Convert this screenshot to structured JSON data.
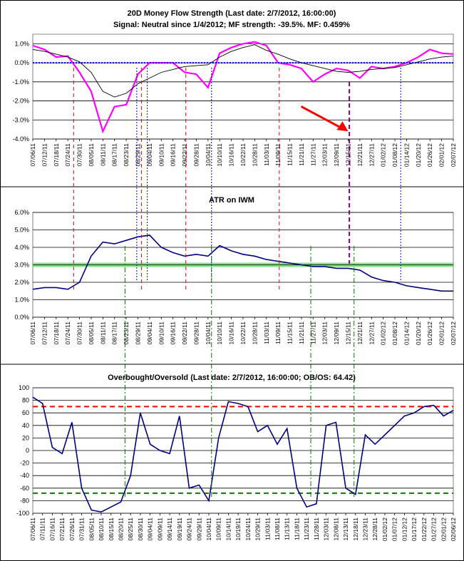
{
  "chart_data": [
    {
      "type": "line",
      "title": "20D Money Flow Strength (Last date: 2/7/2012, 16:00:00)",
      "subtitle": "Signal: Neutral since  1/4/2012; MF strength: -39.5%. MF: 0.459%",
      "ylim": [
        -4.0,
        1.5
      ],
      "yticks": [
        "1.0%",
        "0.0%",
        "-1.0%",
        "-2.0%",
        "-3.0%",
        "-4.0%"
      ],
      "ytick_values": [
        1.0,
        0.0,
        -1.0,
        -2.0,
        -3.0,
        -4.0
      ],
      "x_labels": [
        "07/06/11",
        "07/12/11",
        "07/18/11",
        "07/24/11",
        "07/30/11",
        "08/05/11",
        "08/11/11",
        "08/17/11",
        "08/23/11",
        "08/29/11",
        "09/04/11",
        "09/10/11",
        "09/16/11",
        "09/22/11",
        "09/28/11",
        "10/04/11",
        "10/10/11",
        "10/16/11",
        "10/22/11",
        "10/28/11",
        "11/03/11",
        "11/09/11",
        "11/15/11",
        "11/21/11",
        "11/27/11",
        "12/03/11",
        "12/09/11",
        "12/15/11",
        "12/21/11",
        "12/27/11",
        "01/02/12",
        "01/08/12",
        "01/14/12",
        "01/20/12",
        "01/26/12",
        "02/01/12",
        "02/07/12"
      ],
      "grid": true,
      "series": [
        {
          "color": "#ff00ff",
          "x": [
            0,
            1,
            2,
            3,
            4,
            5,
            6,
            7,
            8,
            9,
            10,
            11,
            12,
            13,
            14,
            15,
            16,
            17,
            18,
            19,
            20,
            21,
            22,
            23,
            24,
            25,
            26,
            27,
            28,
            29,
            30,
            31,
            32,
            33,
            34,
            35,
            36
          ],
          "values": [
            0.9,
            0.7,
            0.3,
            0.35,
            -0.5,
            -1.5,
            -3.6,
            -2.3,
            -2.2,
            -0.6,
            0.0,
            0.0,
            0.0,
            -0.5,
            -0.6,
            -1.3,
            0.5,
            0.8,
            1.0,
            1.1,
            0.9,
            0.0,
            -0.1,
            -0.3,
            -1.0,
            -0.6,
            -0.3,
            -0.4,
            -0.8,
            -0.2,
            -0.3,
            -0.2,
            0.0,
            0.3,
            0.7,
            0.5,
            0.46
          ]
        },
        {
          "color": "#000000",
          "x": [
            0,
            1,
            2,
            3,
            4,
            5,
            6,
            7,
            8,
            9,
            10,
            11,
            12,
            13,
            14,
            15,
            16,
            17,
            18,
            19,
            20,
            21,
            22,
            23,
            24,
            25,
            26,
            27,
            28,
            29,
            30,
            31,
            32,
            33,
            34,
            35,
            36
          ],
          "values": [
            0.7,
            0.6,
            0.45,
            0.3,
            0.05,
            -0.5,
            -1.5,
            -1.8,
            -1.6,
            -1.1,
            -0.8,
            -0.5,
            -0.35,
            -0.2,
            -0.15,
            -0.1,
            0.3,
            0.6,
            0.8,
            0.95,
            0.65,
            0.45,
            0.2,
            0.0,
            -0.15,
            -0.3,
            -0.45,
            -0.5,
            -0.45,
            -0.35,
            -0.3,
            -0.25,
            -0.1,
            0.05,
            0.2,
            0.3,
            0.35
          ]
        },
        {
          "color": "#0000ff",
          "x": [
            0,
            36
          ],
          "values": [
            0.0,
            0.0
          ]
        }
      ],
      "annotations": [
        {
          "kind": "arrow",
          "color": "#ff0000",
          "x": 27
        }
      ]
    },
    {
      "type": "line",
      "title": "ATR on IWM",
      "ylim": [
        0.0,
        6.0
      ],
      "yticks": [
        "6.0%",
        "5.0%",
        "4.0%",
        "3.0%",
        "2.0%",
        "1.0%",
        "0.0%"
      ],
      "ytick_values": [
        6.0,
        5.0,
        4.0,
        3.0,
        2.0,
        1.0,
        0.0
      ],
      "x_labels": [
        "07/06/11",
        "07/12/11",
        "07/18/11",
        "07/24/11",
        "07/30/11",
        "08/05/11",
        "08/11/11",
        "08/17/11",
        "08/23/11",
        "08/29/11",
        "09/04/11",
        "09/10/11",
        "09/16/11",
        "09/22/11",
        "09/28/11",
        "10/04/11",
        "10/10/11",
        "10/16/11",
        "10/22/11",
        "10/28/11",
        "11/03/11",
        "11/09/11",
        "11/15/11",
        "11/21/11",
        "11/27/11",
        "12/03/11",
        "12/09/11",
        "12/15/11",
        "12/21/11",
        "12/27/11",
        "01/02/12",
        "01/08/12",
        "01/14/12",
        "01/20/12",
        "01/26/12",
        "02/01/12",
        "02/07/12"
      ],
      "grid": true,
      "band": [
        2.88,
        3.12
      ],
      "series": [
        {
          "color": "#000080",
          "x": [
            0,
            1,
            2,
            3,
            4,
            5,
            6,
            7,
            8,
            9,
            10,
            11,
            12,
            13,
            14,
            15,
            16,
            17,
            18,
            19,
            20,
            21,
            22,
            23,
            24,
            25,
            26,
            27,
            28,
            29,
            30,
            31,
            32,
            33,
            34,
            35,
            36
          ],
          "values": [
            1.6,
            1.7,
            1.7,
            1.6,
            2.0,
            3.5,
            4.3,
            4.2,
            4.4,
            4.6,
            4.7,
            4.0,
            3.7,
            3.5,
            3.6,
            3.5,
            4.1,
            3.8,
            3.6,
            3.5,
            3.3,
            3.2,
            3.1,
            3.0,
            2.9,
            2.9,
            2.8,
            2.8,
            2.7,
            2.3,
            2.1,
            2.0,
            1.8,
            1.7,
            1.6,
            1.5,
            1.5
          ]
        }
      ]
    },
    {
      "type": "line",
      "title": "Overbought/Oversold (Last date: 2/7/2012, 16:00:00; OB/OS: 64.42)",
      "ylim": [
        -100,
        100
      ],
      "yticks": [
        "100",
        "80",
        "60",
        "40",
        "20",
        "0",
        "-20",
        "-40",
        "-60",
        "-80",
        "-100"
      ],
      "ytick_values": [
        100,
        80,
        60,
        40,
        20,
        0,
        -20,
        -40,
        -60,
        -80,
        -100
      ],
      "x_labels": [
        "07/06/11",
        "07/11/11",
        "07/16/11",
        "07/21/11",
        "07/26/11",
        "07/31/11",
        "08/05/11",
        "08/10/11",
        "08/15/11",
        "08/20/11",
        "08/25/11",
        "08/30/11",
        "09/04/11",
        "09/09/11",
        "09/14/11",
        "09/19/11",
        "09/24/11",
        "09/29/11",
        "10/04/11",
        "10/09/11",
        "10/14/11",
        "10/19/11",
        "10/24/11",
        "10/29/11",
        "11/03/11",
        "11/08/11",
        "11/13/11",
        "11/18/11",
        "11/23/11",
        "11/28/11",
        "12/03/11",
        "12/08/11",
        "12/13/11",
        "12/18/11",
        "12/23/11",
        "12/28/11",
        "01/02/12",
        "01/07/12",
        "01/12/12",
        "01/17/12",
        "01/22/12",
        "01/27/12",
        "02/01/12",
        "02/06/12"
      ],
      "grid": true,
      "thresholds": [
        {
          "value": 70,
          "color": "#ff0000"
        },
        {
          "value": -68,
          "color": "#008000"
        }
      ],
      "series": [
        {
          "color": "#000080",
          "x": [
            0,
            1,
            2,
            3,
            4,
            5,
            6,
            7,
            8,
            9,
            10,
            11,
            12,
            13,
            14,
            15,
            16,
            17,
            18,
            19,
            20,
            21,
            22,
            23,
            24,
            25,
            26,
            27,
            28,
            29,
            30,
            31,
            32,
            33,
            34,
            35,
            36,
            37,
            38,
            39,
            40,
            41,
            42,
            43
          ],
          "values": [
            85,
            75,
            5,
            -5,
            45,
            -60,
            -95,
            -98,
            -90,
            -82,
            -40,
            60,
            10,
            0,
            -5,
            55,
            -60,
            -55,
            -80,
            20,
            78,
            75,
            70,
            30,
            40,
            10,
            35,
            -60,
            -90,
            -85,
            40,
            45,
            -60,
            -70,
            25,
            10,
            25,
            40,
            55,
            60,
            70,
            72,
            55,
            64
          ]
        }
      ]
    }
  ]
}
